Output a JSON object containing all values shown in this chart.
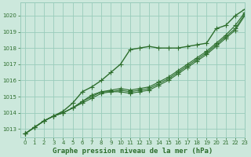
{
  "title": "Graphe pression niveau de la mer (hPa)",
  "bg_color": "#cce8dc",
  "grid_color": "#99ccbb",
  "line_color": "#2d6e2d",
  "text_color": "#2d6e2d",
  "xlim": [
    -0.5,
    23
  ],
  "ylim": [
    1012.5,
    1020.8
  ],
  "yticks": [
    1013,
    1014,
    1015,
    1016,
    1017,
    1018,
    1019,
    1020
  ],
  "xticks": [
    0,
    1,
    2,
    3,
    4,
    5,
    6,
    7,
    8,
    9,
    10,
    11,
    12,
    13,
    14,
    15,
    16,
    17,
    18,
    19,
    20,
    21,
    22,
    23
  ],
  "series": [
    [
      1012.7,
      1013.1,
      1013.5,
      1013.8,
      1014.1,
      1014.6,
      1015.3,
      1015.6,
      1016.0,
      1016.5,
      1017.0,
      1017.9,
      1018.0,
      1018.1,
      1018.0,
      1018.0,
      1018.0,
      1018.1,
      1018.2,
      1018.3,
      1019.2,
      1019.4,
      1020.0,
      1020.4
    ],
    [
      1012.7,
      1013.1,
      1013.5,
      1013.8,
      1014.0,
      1014.3,
      1014.7,
      1015.1,
      1015.3,
      1015.4,
      1015.5,
      1015.4,
      1015.5,
      1015.6,
      1015.9,
      1016.2,
      1016.6,
      1017.0,
      1017.4,
      1017.8,
      1018.3,
      1018.8,
      1019.4,
      1020.2
    ],
    [
      1012.7,
      1013.1,
      1013.5,
      1013.8,
      1014.0,
      1014.3,
      1014.7,
      1015.0,
      1015.3,
      1015.3,
      1015.4,
      1015.3,
      1015.4,
      1015.5,
      1015.8,
      1016.1,
      1016.5,
      1016.9,
      1017.3,
      1017.7,
      1018.2,
      1018.7,
      1019.2,
      1020.1
    ],
    [
      1012.7,
      1013.1,
      1013.5,
      1013.8,
      1014.0,
      1014.3,
      1014.6,
      1014.9,
      1015.2,
      1015.3,
      1015.3,
      1015.2,
      1015.3,
      1015.4,
      1015.7,
      1016.0,
      1016.4,
      1016.8,
      1017.2,
      1017.6,
      1018.1,
      1018.6,
      1019.1,
      1020.0
    ]
  ],
  "marker_style": "+",
  "markersize": 4,
  "linewidths": [
    1.0,
    0.8,
    0.8,
    0.8
  ]
}
